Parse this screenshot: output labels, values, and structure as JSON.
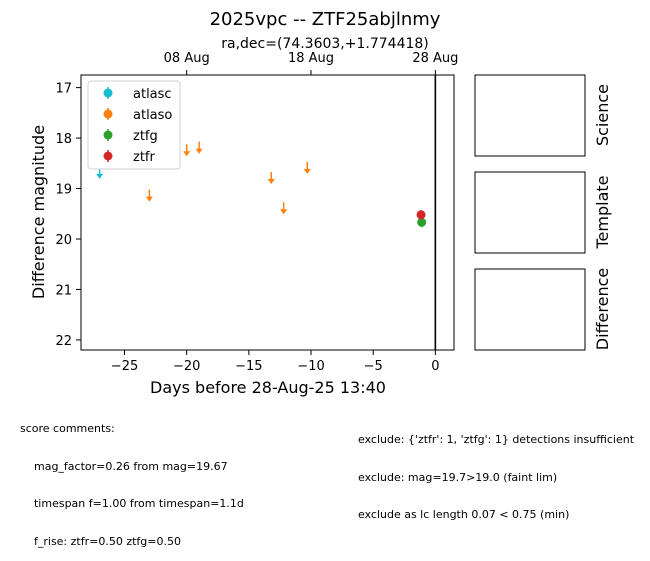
{
  "chart_data": {
    "type": "scatter",
    "title": "2025vpc -- ZTF25abjlnmy",
    "subtitle": "ra,dec=(74.3603,+1.774418)",
    "xlabel": "Days before 28-Aug-25 13:40",
    "ylabel": "Difference magnitude",
    "xlim": [
      -28.5,
      1.5
    ],
    "ylim": [
      22.2,
      16.75
    ],
    "y_inverted": true,
    "grid": false,
    "legend_position": "top-left",
    "x_ticks": [
      -25,
      -20,
      -15,
      -10,
      -5,
      0
    ],
    "x_tick_labels": [
      "−25",
      "−20",
      "−15",
      "−10",
      "−5",
      "0"
    ],
    "y_ticks": [
      17,
      18,
      19,
      20,
      21,
      22
    ],
    "y_tick_labels": [
      "17",
      "18",
      "19",
      "20",
      "21",
      "22"
    ],
    "top_axis_ticks": [
      {
        "label": "08 Aug",
        "x": -20
      },
      {
        "label": "18 Aug",
        "x": -10
      },
      {
        "label": "28 Aug",
        "x": 0
      }
    ],
    "vline_x": 0,
    "series": [
      {
        "name": "atlasc",
        "color": "#17becf",
        "upper_limit": true,
        "points": [
          {
            "x": -27.0,
            "y": 18.75
          }
        ]
      },
      {
        "name": "atlaso",
        "color": "#ff7f0e",
        "upper_limit": true,
        "points": [
          {
            "x": -23.0,
            "y": 19.2
          },
          {
            "x": -20.0,
            "y": 18.3
          },
          {
            "x": -19.0,
            "y": 18.25
          },
          {
            "x": -13.2,
            "y": 18.85
          },
          {
            "x": -12.2,
            "y": 19.45
          },
          {
            "x": -10.3,
            "y": 18.65
          }
        ]
      },
      {
        "name": "ztfg",
        "color": "#2ca02c",
        "upper_limit": false,
        "points": [
          {
            "x": -1.1,
            "y": 19.67
          }
        ]
      },
      {
        "name": "ztfr",
        "color": "#d62728",
        "upper_limit": false,
        "points": [
          {
            "x": -1.15,
            "y": 19.52
          }
        ]
      }
    ]
  },
  "panels": [
    {
      "label": "Science"
    },
    {
      "label": "Template"
    },
    {
      "label": "Difference"
    }
  ],
  "comments": {
    "left": [
      "score comments:",
      "    mag_factor=0.26 from mag=19.67",
      "    timespan f=1.00 from timespan=1.1d",
      "    f_rise: ztfr=0.50 ztfg=0.50"
    ],
    "right": [
      "exclude: {'ztfr': 1, 'ztfg': 1} detections insufficient",
      "exclude: mag=19.7>19.0 (faint lim)",
      "exclude as lc length 0.07 < 0.75 (min)"
    ]
  }
}
